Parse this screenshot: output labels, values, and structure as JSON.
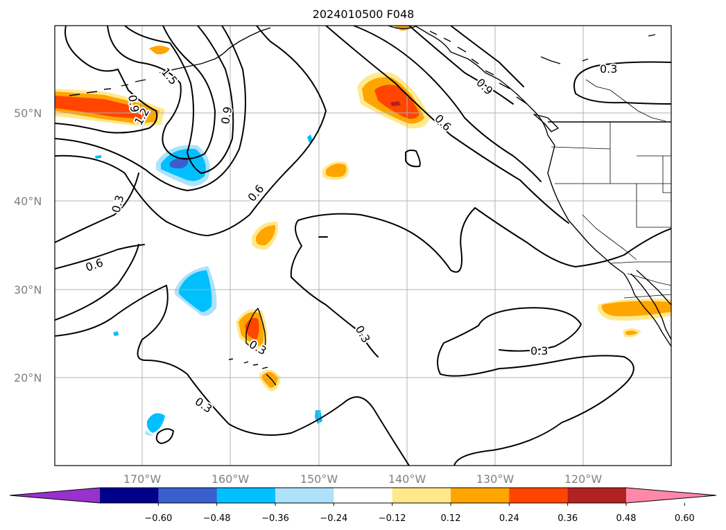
{
  "title": "2024010500 F048",
  "map": {
    "lat_labels": [
      "50°N",
      "40°N",
      "30°N",
      "20°N"
    ],
    "lon_labels": [
      "170°W",
      "160°W",
      "150°W",
      "140°W",
      "130°W",
      "120°W"
    ],
    "contour_labels": [
      "1.5",
      "0.9",
      "1.2",
      "0.9",
      "0.3",
      "0.6",
      "0.6",
      "0.9",
      "0.6",
      "0.3",
      "0.3",
      "0.3",
      "0.3",
      "0.3"
    ]
  },
  "colorbar": {
    "ticks": [
      "−0.60",
      "−0.48",
      "−0.36",
      "−0.24",
      "−0.12",
      "0.12",
      "0.24",
      "0.36",
      "0.48",
      "0.60"
    ],
    "colors": [
      "#9932cc",
      "#00008b",
      "#3a5fcd",
      "#00bfff",
      "#ade2fa",
      "#ffffff",
      "#ffe98c",
      "#ffa500",
      "#ff4500",
      "#b22222",
      "#ff88aa"
    ]
  }
}
